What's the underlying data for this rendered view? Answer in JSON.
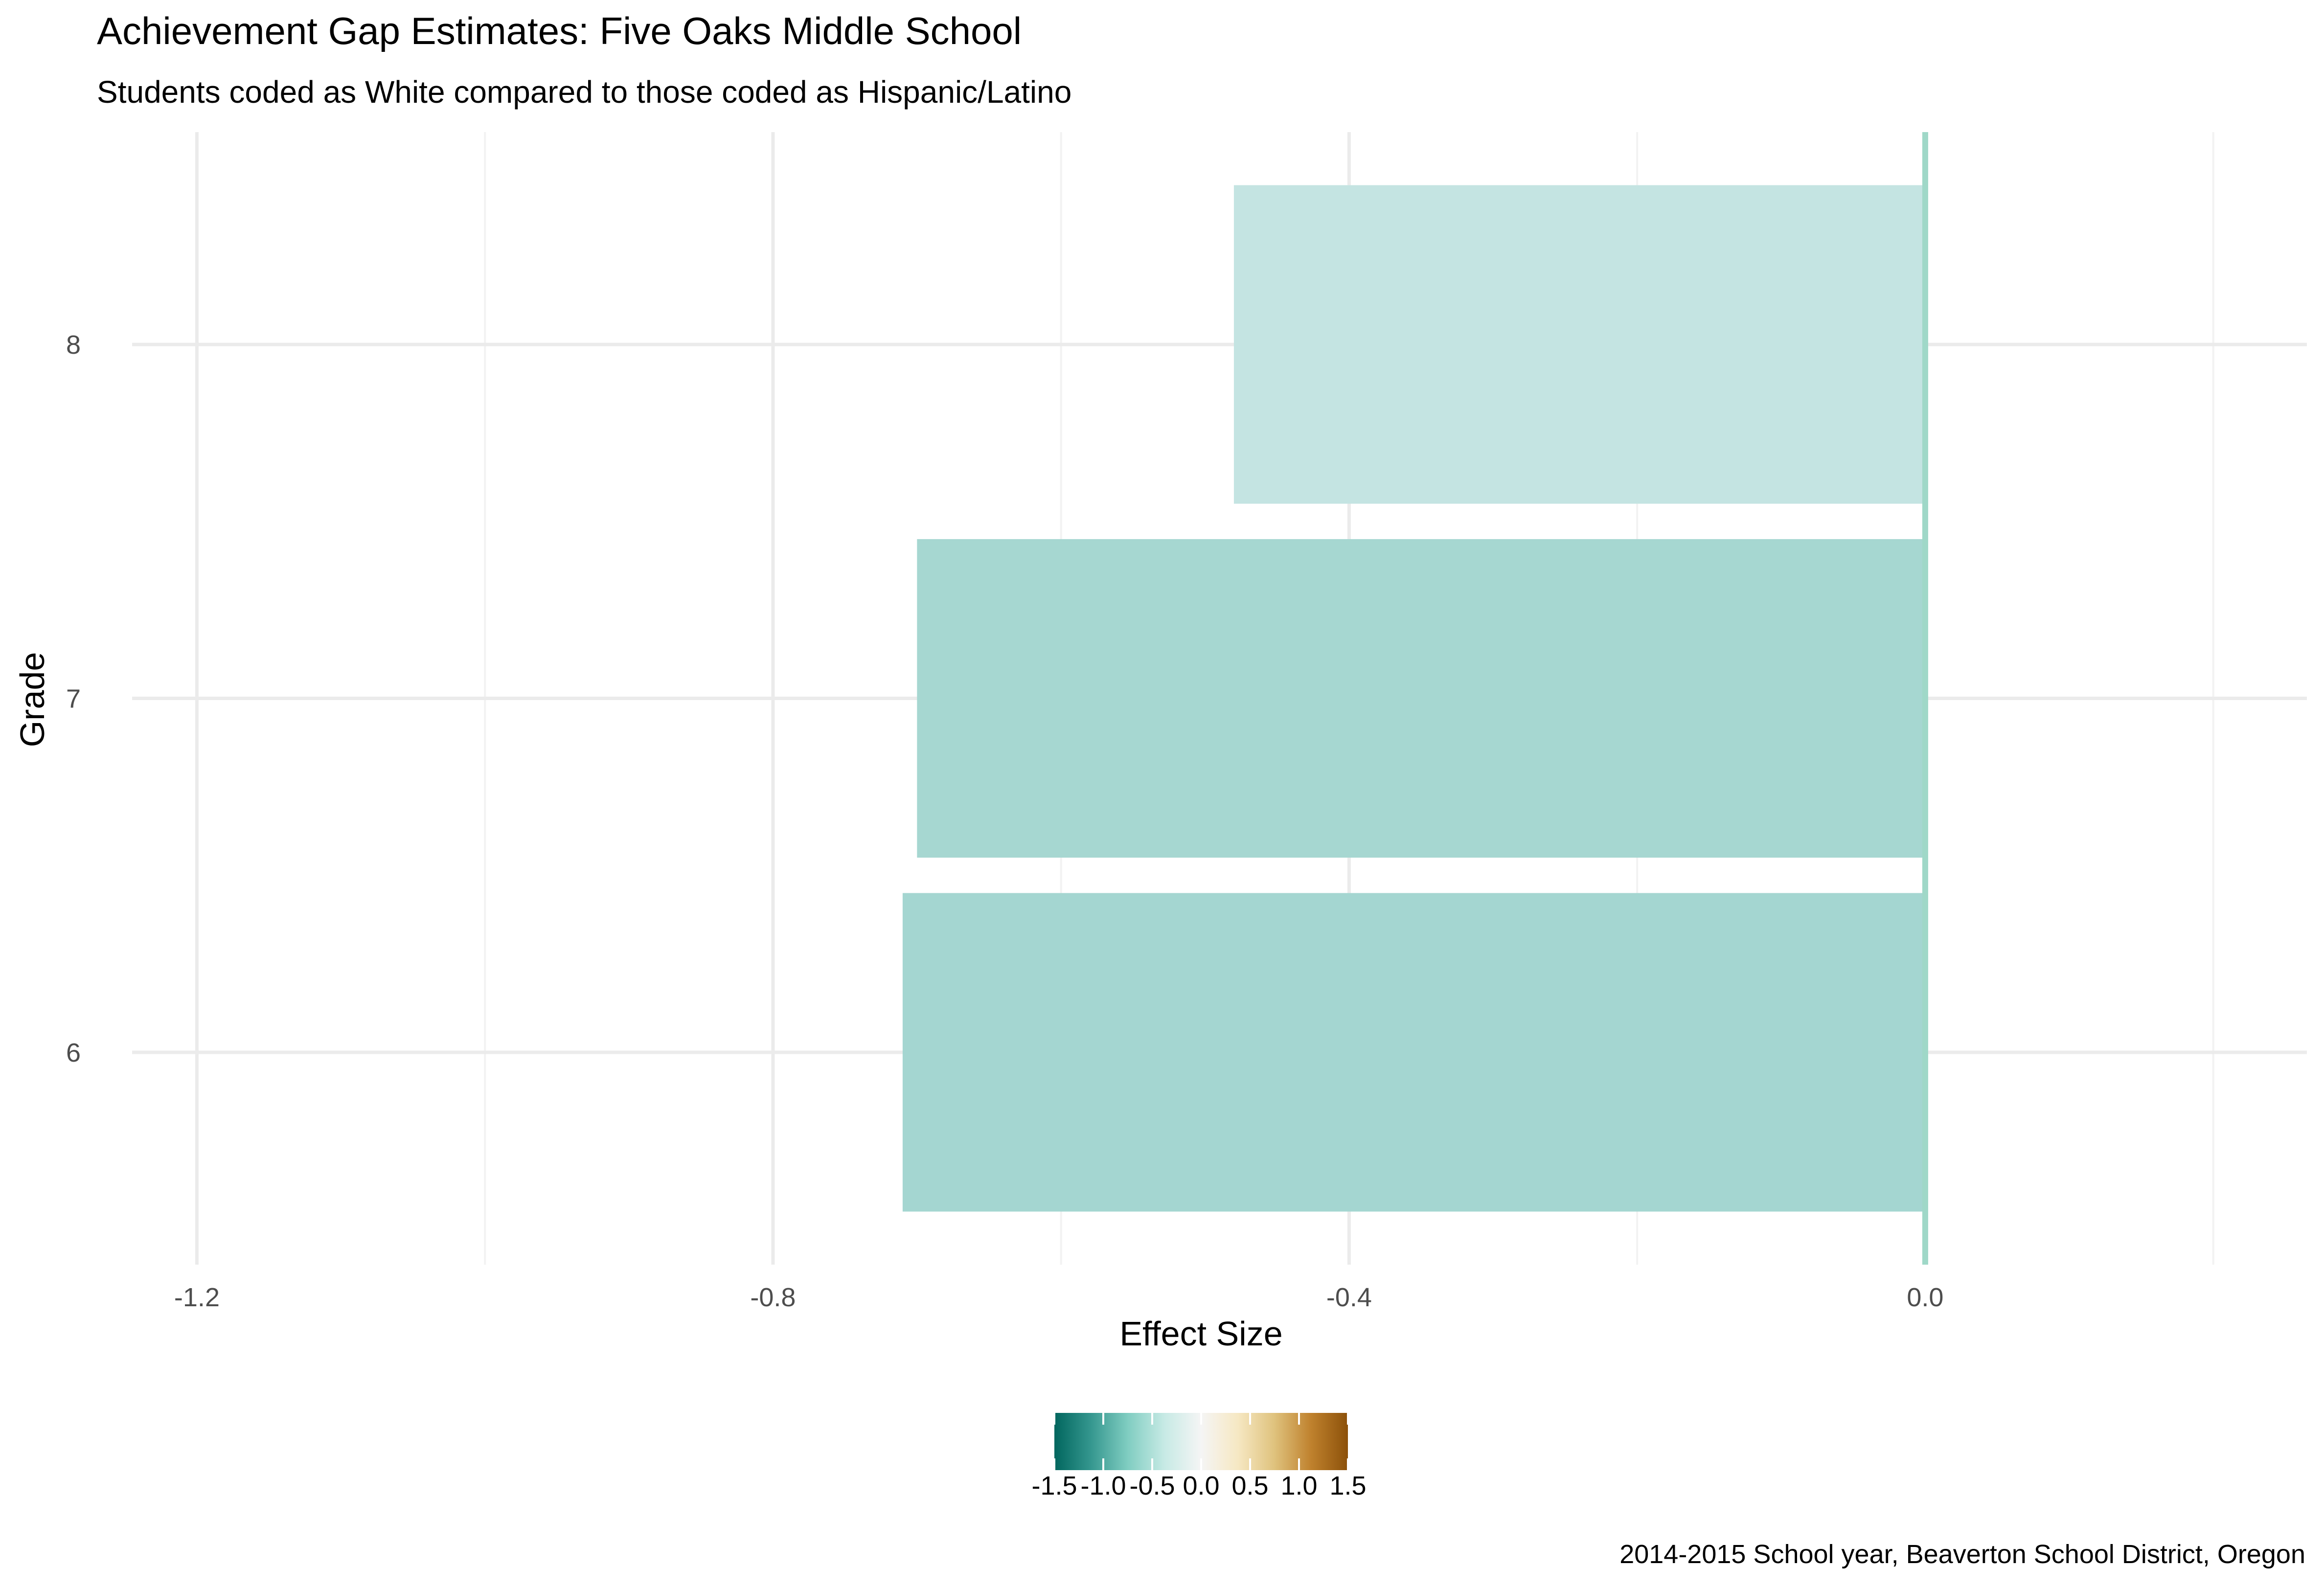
{
  "chart_data": {
    "type": "bar",
    "orientation": "horizontal",
    "title": "Achievement Gap Estimates: Five Oaks Middle School",
    "subtitle": "Students coded as White compared to those coded as Hispanic/Latino",
    "xlabel": "Effect Size",
    "ylabel": "Grade",
    "caption": "2014-2015 School year, Beaverton School District, Oregon",
    "categories": [
      "6",
      "7",
      "8"
    ],
    "values": [
      -0.71,
      -0.7,
      -0.48
    ],
    "bar_colors": [
      "#a4d6d1",
      "#a6d7d1",
      "#c4e4e2"
    ],
    "zero_line_color": "#9fd8c8",
    "xlim": [
      -1.245,
      0.265
    ],
    "xticks": [
      -1.2,
      -0.8,
      -0.4,
      0.0
    ],
    "xtick_labels": [
      "-1.2",
      "-0.8",
      "-0.4",
      "0.0"
    ],
    "ylim": [
      5.4,
      8.6
    ],
    "grid": true,
    "legend": {
      "type": "colorbar",
      "position": "bottom",
      "range": [
        -1.5,
        1.5
      ],
      "ticks": [
        -1.5,
        -1.0,
        -0.5,
        0.0,
        0.5,
        1.0,
        1.5
      ],
      "tick_labels": [
        "-1.5",
        "-1.0",
        "-0.5",
        "0.0",
        "0.5",
        "1.0",
        "1.5"
      ],
      "palette": [
        "#01665e",
        "#35978f",
        "#80cdc1",
        "#c7eae5",
        "#f5f5f5",
        "#f6e8c3",
        "#dfc27d",
        "#bf812d",
        "#8c510a"
      ]
    }
  }
}
